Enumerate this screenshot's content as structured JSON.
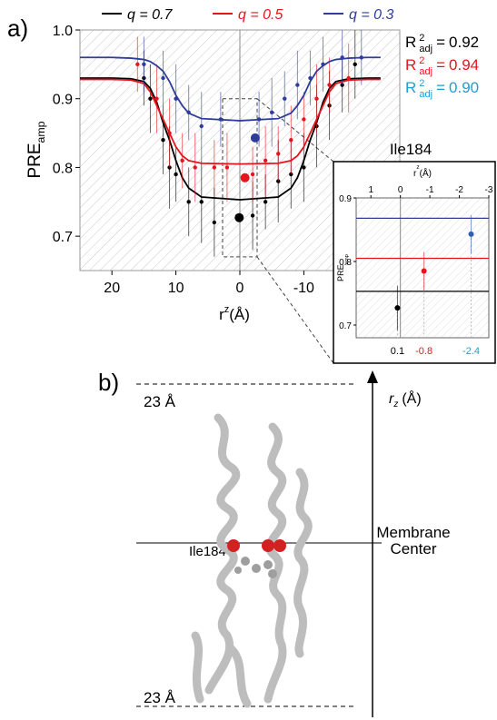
{
  "figure": {
    "panel_a_label": "a)",
    "panel_b_label": "b)"
  },
  "chart_data": [
    {
      "type": "line",
      "xlim": [
        25,
        -25
      ],
      "ylim": [
        0.65,
        1.0
      ],
      "xticks": [
        20,
        10,
        0,
        -10
      ],
      "yticks": [
        0.7,
        0.8,
        0.9,
        {
          "value": 1,
          "label": "1.0"
        }
      ],
      "xlabel": {
        "text": "r",
        "sup": "z",
        "unit": "(Å)"
      },
      "ylabel": {
        "text": "PRE",
        "sub": "amp"
      },
      "fit_stat": {
        "symbol": "R",
        "sup": "2",
        "sub": "adj",
        "sep": "="
      },
      "r2_values": [
        0.92,
        0.94,
        0.9
      ],
      "r2_value_labels": [
        "0.92",
        "0.94",
        "0.90"
      ],
      "r2_colors": [
        "#000000",
        "#e8141c",
        "#1a9fd8"
      ],
      "series": [
        {
          "name": "q = 0.7",
          "color": "#000000",
          "x": [
            25,
            20,
            17,
            15,
            14,
            13,
            12,
            11,
            10,
            9,
            8,
            6,
            0,
            -6,
            -8,
            -9,
            -10,
            -11,
            -12,
            -13,
            -14,
            -15,
            -17,
            -20,
            -22
          ],
          "values": [
            0.93,
            0.93,
            0.929,
            0.925,
            0.915,
            0.895,
            0.865,
            0.84,
            0.81,
            0.785,
            0.77,
            0.757,
            0.753,
            0.757,
            0.77,
            0.785,
            0.81,
            0.84,
            0.865,
            0.895,
            0.915,
            0.925,
            0.929,
            0.93,
            0.93
          ],
          "points": {
            "x": [
              15,
              14,
              12,
              11,
              10,
              8,
              6,
              4,
              -2,
              -4,
              -6,
              -8,
              -10,
              -12,
              -14,
              -16,
              -18
            ],
            "values": [
              0.93,
              0.9,
              0.84,
              0.8,
              0.79,
              0.75,
              0.75,
              0.72,
              0.73,
              0.75,
              0.78,
              0.79,
              0.8,
              0.86,
              0.89,
              0.92,
              0.95
            ],
            "errors": [
              0.04,
              0.05,
              0.05,
              0.06,
              0.04,
              0.05,
              0.06,
              0.05,
              0.05,
              0.04,
              0.06,
              0.05,
              0.05,
              0.06,
              0.05,
              0.04,
              0.05
            ]
          },
          "highlight": {
            "x": 0.1,
            "value": 0.727
          }
        },
        {
          "name": "q = 0.5",
          "color": "#e8141c",
          "x": [
            25,
            20,
            17,
            15,
            14,
            13,
            12,
            11,
            10,
            9,
            8,
            6,
            0,
            -6,
            -8,
            -9,
            -10,
            -11,
            -12,
            -13,
            -14,
            -15,
            -17,
            -20,
            -22
          ],
          "values": [
            0.928,
            0.928,
            0.927,
            0.922,
            0.91,
            0.89,
            0.87,
            0.85,
            0.83,
            0.817,
            0.81,
            0.806,
            0.805,
            0.806,
            0.81,
            0.817,
            0.83,
            0.85,
            0.87,
            0.89,
            0.91,
            0.922,
            0.927,
            0.928,
            0.928
          ],
          "points": {
            "x": [
              16,
              13,
              11,
              9,
              7,
              4,
              2,
              -2,
              -4,
              -6,
              -8,
              -10,
              -12,
              -14,
              -17
            ],
            "values": [
              0.95,
              0.9,
              0.85,
              0.81,
              0.8,
              0.8,
              0.8,
              0.79,
              0.81,
              0.82,
              0.84,
              0.87,
              0.9,
              0.92,
              0.93
            ],
            "errors": [
              0.04,
              0.05,
              0.05,
              0.04,
              0.05,
              0.04,
              0.05,
              0.04,
              0.05,
              0.04,
              0.05,
              0.04,
              0.05,
              0.04,
              0.05
            ]
          },
          "highlight": {
            "x": -0.8,
            "value": 0.785
          }
        },
        {
          "name": "q = 0.3",
          "color": "#2e3d9c",
          "x": [
            25,
            20,
            17,
            15,
            14,
            13,
            12,
            11,
            10,
            9,
            8,
            6,
            0,
            -6,
            -8,
            -9,
            -10,
            -11,
            -12,
            -13,
            -14,
            -15,
            -17,
            -20,
            -22
          ],
          "values": [
            0.96,
            0.96,
            0.959,
            0.957,
            0.954,
            0.948,
            0.94,
            0.925,
            0.905,
            0.89,
            0.879,
            0.871,
            0.868,
            0.871,
            0.879,
            0.89,
            0.905,
            0.925,
            0.94,
            0.948,
            0.954,
            0.957,
            0.959,
            0.96,
            0.96
          ],
          "points": {
            "x": [
              15,
              12,
              10,
              8,
              6,
              3,
              -3,
              -5,
              -7,
              -9,
              -11,
              -13,
              -16,
              -19
            ],
            "values": [
              0.95,
              0.93,
              0.9,
              0.88,
              0.86,
              0.87,
              0.87,
              0.88,
              0.9,
              0.92,
              0.93,
              0.95,
              0.96,
              0.96
            ],
            "errors": [
              0.04,
              0.04,
              0.05,
              0.04,
              0.05,
              0.04,
              0.04,
              0.05,
              0.04,
              0.05,
              0.04,
              0.04,
              0.04,
              0.04
            ]
          },
          "highlight": {
            "x": -2.4,
            "value": 0.843
          }
        }
      ]
    },
    {
      "type": "scatter",
      "title": "Ile184",
      "xlim": [
        1.5,
        -3.0
      ],
      "ylim": [
        0.68,
        0.9
      ],
      "xticks": [
        1,
        0,
        -1,
        -2,
        -3
      ],
      "yticks": [
        0.7,
        0.8,
        0.9
      ],
      "xlabel": {
        "text": "r",
        "sup": "z",
        "unit": "(Å)"
      },
      "ylabel": {
        "text": "PRE",
        "sub": "amp"
      },
      "hlines": [
        {
          "value": 0.753,
          "color": "#000000"
        },
        {
          "value": 0.805,
          "color": "#e8141c"
        },
        {
          "value": 0.868,
          "color": "#2e3d9c"
        }
      ],
      "x": [
        0.1,
        -0.8,
        -2.4
      ],
      "values": [
        0.727,
        0.785,
        0.843
      ],
      "errors": [
        0.035,
        0.03,
        0.03
      ],
      "colors": [
        "#000000",
        "#e8141c",
        "#2e5fb0"
      ],
      "label_colors": [
        "#000000",
        "#e8141c",
        "#1a9fd8"
      ]
    }
  ],
  "diagram": {
    "top_label": "23 Å",
    "bottom_label": "23 Å",
    "axis_label": {
      "text": "r",
      "sub": "z",
      "unit": "(Å)"
    },
    "center_label": [
      "Membrane",
      "Center"
    ],
    "residue_label": "Ile184"
  }
}
